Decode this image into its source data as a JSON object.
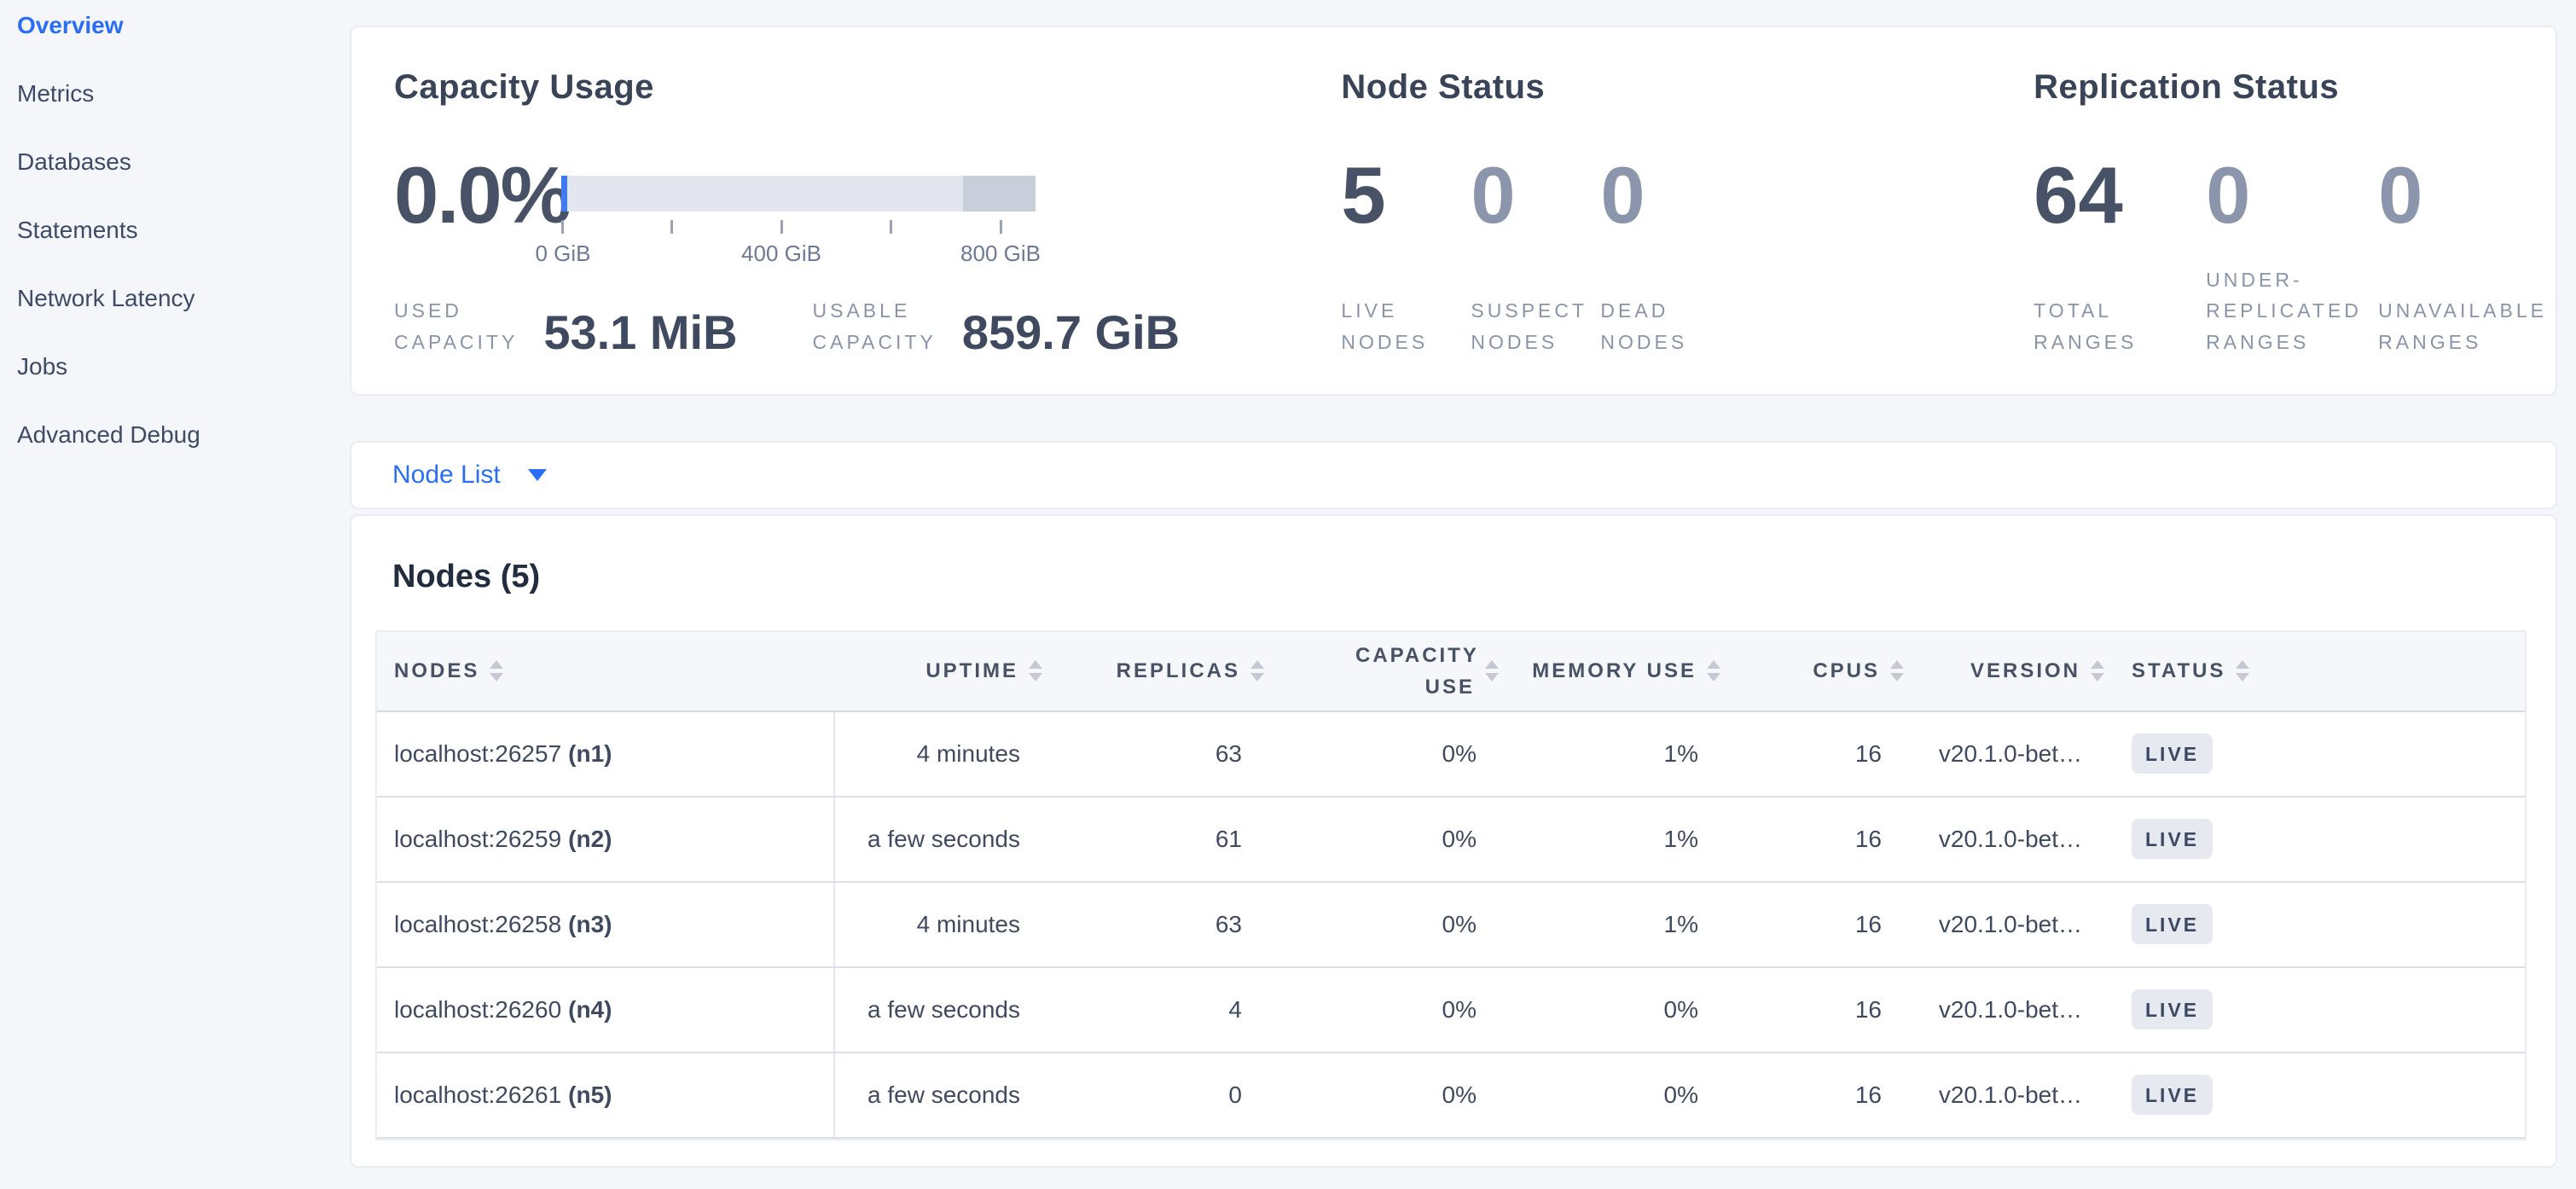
{
  "sidebar": {
    "items": [
      {
        "label": "Overview"
      },
      {
        "label": "Metrics"
      },
      {
        "label": "Databases"
      },
      {
        "label": "Statements"
      },
      {
        "label": "Network Latency"
      },
      {
        "label": "Jobs"
      },
      {
        "label": "Advanced Debug"
      }
    ]
  },
  "capacity": {
    "title": "Capacity Usage",
    "percent": "0.0%",
    "axis_ticks": [
      "0 GiB",
      "400 GiB",
      "800 GiB"
    ],
    "used_label": "USED CAPACITY",
    "used_value": "53.1 MiB",
    "usable_label": "USABLE CAPACITY",
    "usable_value": "859.7 GiB"
  },
  "node_status": {
    "title": "Node Status",
    "stats": [
      {
        "value": "5",
        "label": "LIVE NODES"
      },
      {
        "value": "0",
        "label": "SUSPECT NODES"
      },
      {
        "value": "0",
        "label": "DEAD NODES"
      }
    ]
  },
  "replication": {
    "title": "Replication Status",
    "stats": [
      {
        "value": "64",
        "label": "TOTAL RANGES"
      },
      {
        "value": "0",
        "label": "UNDER-REPLICATED RANGES"
      },
      {
        "value": "0",
        "label": "UNAVAILABLE RANGES"
      }
    ]
  },
  "node_list": {
    "label": "Node List"
  },
  "nodes_table": {
    "title": "Nodes (5)",
    "columns": [
      "NODES",
      "UPTIME",
      "REPLICAS",
      "CAPACITY USE",
      "MEMORY USE",
      "CPUS",
      "VERSION",
      "STATUS"
    ],
    "rows": [
      {
        "host": "localhost:26257",
        "id": "(n1)",
        "uptime": "4 minutes",
        "replicas": "63",
        "capacity": "0%",
        "memory": "1%",
        "cpus": "16",
        "version": "v20.1.0-bet…",
        "status": "LIVE"
      },
      {
        "host": "localhost:26259",
        "id": "(n2)",
        "uptime": "a few seconds",
        "replicas": "61",
        "capacity": "0%",
        "memory": "1%",
        "cpus": "16",
        "version": "v20.1.0-bet…",
        "status": "LIVE"
      },
      {
        "host": "localhost:26258",
        "id": "(n3)",
        "uptime": "4 minutes",
        "replicas": "63",
        "capacity": "0%",
        "memory": "1%",
        "cpus": "16",
        "version": "v20.1.0-bet…",
        "status": "LIVE"
      },
      {
        "host": "localhost:26260",
        "id": "(n4)",
        "uptime": "a few seconds",
        "replicas": "4",
        "capacity": "0%",
        "memory": "0%",
        "cpus": "16",
        "version": "v20.1.0-bet…",
        "status": "LIVE"
      },
      {
        "host": "localhost:26261",
        "id": "(n5)",
        "uptime": "a few seconds",
        "replicas": "0",
        "capacity": "0%",
        "memory": "0%",
        "cpus": "16",
        "version": "v20.1.0-bet…",
        "status": "LIVE"
      }
    ]
  },
  "colors": {
    "accent_blue": "#2a6ef5",
    "bar_track": "#e3e6ee",
    "bar_free_dark": "#c9cedb",
    "bar_used_blue": "#3e7bf0",
    "badge_bg": "#e6e9f0",
    "page_bg": "#f4f6fa"
  }
}
